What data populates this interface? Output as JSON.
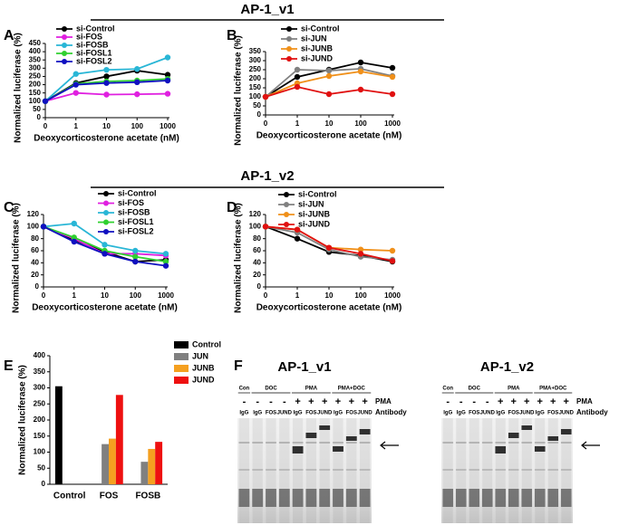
{
  "headers": [
    "AP-1_v1",
    "AP-1_v2"
  ],
  "chart_data": [
    {
      "type": "line",
      "panel": "A",
      "x_label": "Deoxycorticosterone acetate (nM)",
      "y_label": "Normalized luciferase (%)",
      "categories": [
        "0",
        "1",
        "10",
        "100",
        "1000"
      ],
      "ylim": [
        0,
        450
      ],
      "yticks": [
        0,
        50,
        100,
        150,
        200,
        250,
        300,
        350,
        400,
        450
      ],
      "series": [
        {
          "name": "si-Control",
          "color": "#000000",
          "values": [
            100,
            210,
            250,
            285,
            260
          ]
        },
        {
          "name": "si-FOS",
          "color": "#e020e0",
          "values": [
            100,
            150,
            140,
            142,
            145
          ]
        },
        {
          "name": "si-FOSB",
          "color": "#29b6d6",
          "values": [
            100,
            265,
            290,
            295,
            365
          ]
        },
        {
          "name": "si-FOSL1",
          "color": "#30d030",
          "values": [
            100,
            205,
            220,
            225,
            235
          ]
        },
        {
          "name": "si-FOSL2",
          "color": "#1010c0",
          "values": [
            100,
            200,
            210,
            215,
            225
          ]
        }
      ]
    },
    {
      "type": "line",
      "panel": "B",
      "x_label": "Deoxycorticosterone acetate (nM)",
      "y_label": "Normalized luciferase (%)",
      "categories": [
        "0",
        "1",
        "10",
        "100",
        "1000"
      ],
      "ylim": [
        0,
        350
      ],
      "yticks": [
        0,
        50,
        100,
        150,
        200,
        250,
        300,
        350
      ],
      "series": [
        {
          "name": "si-Control",
          "color": "#000000",
          "values": [
            100,
            210,
            250,
            290,
            260
          ]
        },
        {
          "name": "si-JUN",
          "color": "#808080",
          "values": [
            100,
            250,
            245,
            255,
            215
          ]
        },
        {
          "name": "si-JUNB",
          "color": "#f0901a",
          "values": [
            100,
            175,
            215,
            240,
            210
          ]
        },
        {
          "name": "si-JUND",
          "color": "#e01010",
          "values": [
            100,
            155,
            115,
            140,
            115
          ]
        }
      ]
    },
    {
      "type": "line",
      "panel": "C",
      "x_label": "Deoxycorticosterone acetate (nM)",
      "y_label": "Normalized luciferase (%)",
      "categories": [
        "0",
        "1",
        "10",
        "100",
        "1000"
      ],
      "ylim": [
        0,
        120
      ],
      "yticks": [
        0,
        20,
        40,
        60,
        80,
        100,
        120
      ],
      "series": [
        {
          "name": "si-Control",
          "color": "#000000",
          "values": [
            100,
            78,
            58,
            42,
            45
          ]
        },
        {
          "name": "si-FOS",
          "color": "#e020e0",
          "values": [
            100,
            80,
            55,
            55,
            52
          ]
        },
        {
          "name": "si-FOSB",
          "color": "#29b6d6",
          "values": [
            100,
            105,
            70,
            60,
            55
          ]
        },
        {
          "name": "si-FOSL1",
          "color": "#30d030",
          "values": [
            100,
            82,
            60,
            50,
            42
          ]
        },
        {
          "name": "si-FOSL2",
          "color": "#1010c0",
          "values": [
            100,
            75,
            55,
            42,
            35
          ]
        }
      ]
    },
    {
      "type": "line",
      "panel": "D",
      "x_label": "Deoxycorticosterone acetate (nM)",
      "y_label": "Normalized luciferase (%)",
      "categories": [
        "0",
        "1",
        "10",
        "100",
        "1000"
      ],
      "ylim": [
        0,
        120
      ],
      "yticks": [
        0,
        20,
        40,
        60,
        80,
        100,
        120
      ],
      "series": [
        {
          "name": "si-Control",
          "color": "#000000",
          "values": [
            100,
            80,
            58,
            52,
            42
          ]
        },
        {
          "name": "si-JUN",
          "color": "#808080",
          "values": [
            100,
            90,
            62,
            50,
            45
          ]
        },
        {
          "name": "si-JUNB",
          "color": "#f0901a",
          "values": [
            100,
            95,
            65,
            62,
            60
          ]
        },
        {
          "name": "si-JUND",
          "color": "#e01010",
          "values": [
            100,
            95,
            65,
            55,
            43
          ]
        }
      ]
    },
    {
      "type": "bar",
      "panel": "E",
      "y_label": "Normalized luciferase (%)",
      "categories": [
        "Control",
        "FOS",
        "FOSB"
      ],
      "ylim": [
        0,
        400
      ],
      "yticks": [
        0,
        50,
        100,
        150,
        200,
        250,
        300,
        350,
        400
      ],
      "series": [
        {
          "name": "Control",
          "color": "#000000",
          "values": [
            305,
            null,
            null
          ]
        },
        {
          "name": "JUN",
          "color": "#808080",
          "values": [
            null,
            125,
            70
          ]
        },
        {
          "name": "JUNB",
          "color": "#f5a020",
          "values": [
            null,
            142,
            110
          ]
        },
        {
          "name": "JUND",
          "color": "#ee1010",
          "values": [
            null,
            278,
            132
          ]
        }
      ]
    }
  ],
  "gel_panel": {
    "panel": "F",
    "pma_label": "PMA",
    "antibody_label": "Antibody",
    "gels": [
      {
        "title": "AP-1_v1",
        "groups": [
          "Con",
          "DOC",
          "PMA",
          "PMA+DOC"
        ],
        "pma": [
          "-",
          "-",
          "-",
          "-",
          "+",
          "+",
          "+",
          "+",
          "+",
          "+"
        ],
        "antibodies": [
          "IgG",
          "IgG",
          "FOS",
          "JUND",
          "IgG",
          "FOS",
          "JUND",
          "IgG",
          "FOS",
          "JUND"
        ]
      },
      {
        "title": "AP-1_v2",
        "groups": [
          "Con",
          "DOC",
          "PMA",
          "PMA+DOC"
        ],
        "pma": [
          "-",
          "-",
          "-",
          "-",
          "+",
          "+",
          "+",
          "+",
          "+",
          "+"
        ],
        "antibodies": [
          "IgG",
          "IgG",
          "FOS",
          "JUND",
          "IgG",
          "FOS",
          "JUND",
          "IgG",
          "FOS",
          "JUND"
        ]
      }
    ]
  }
}
